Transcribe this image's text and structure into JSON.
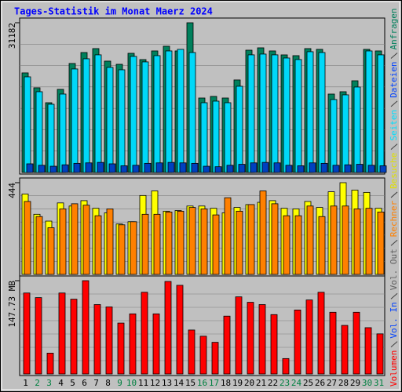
{
  "title": "Tages-Statistik im Monat Maerz 2024",
  "categories": [
    "1",
    "2",
    "3",
    "4",
    "5",
    "6",
    "7",
    "8",
    "9",
    "10",
    "11",
    "12",
    "13",
    "14",
    "15",
    "16",
    "17",
    "18",
    "19",
    "20",
    "21",
    "22",
    "23",
    "24",
    "25",
    "26",
    "27",
    "28",
    "29",
    "30",
    "31"
  ],
  "category_colors": [
    "#000000",
    "#008040",
    "#008040",
    "#000000",
    "#000000",
    "#000000",
    "#000000",
    "#000000",
    "#008040",
    "#008040",
    "#000000",
    "#000000",
    "#000000",
    "#000000",
    "#000000",
    "#008040",
    "#008040",
    "#000000",
    "#000000",
    "#000000",
    "#000000",
    "#000000",
    "#008040",
    "#008040",
    "#000000",
    "#000000",
    "#000000",
    "#000000",
    "#000000",
    "#008040",
    "#008040"
  ],
  "chart_data": [
    {
      "type": "bar",
      "ylim": [
        0,
        31182
      ],
      "yticks": [
        31182
      ],
      "series": [
        {
          "name": "Anfragen",
          "color": "#00805c",
          "text_color": "#00805c",
          "values": [
            20740,
            17640,
            14530,
            17310,
            22700,
            24980,
            25800,
            23190,
            22530,
            24820,
            23510,
            25310,
            26290,
            25310,
            31182,
            15510,
            15840,
            15510,
            19270,
            25470,
            25960,
            25310,
            24490,
            24330,
            25800,
            25640,
            16330,
            16820,
            19100,
            25640,
            25310
          ]
        },
        {
          "name": "Dateien",
          "color": "#00d8f8",
          "text_color": "#0040ff",
          "values": [
            19920,
            16820,
            14210,
            16330,
            21560,
            23680,
            24500,
            21880,
            21390,
            24170,
            23030,
            24330,
            25310,
            25640,
            24980,
            14530,
            14860,
            14530,
            17960,
            24500,
            24660,
            24500,
            23840,
            23520,
            25150,
            24980,
            15190,
            16170,
            17800,
            25310,
            24500
          ]
        },
        {
          "name": "Seiten",
          "color": "#0040c0",
          "text_color": "#00e0ff",
          "values": [
            1800,
            1500,
            1300,
            1600,
            1900,
            2000,
            2100,
            1800,
            1400,
            1500,
            1900,
            2000,
            2100,
            2000,
            1900,
            1300,
            1200,
            1500,
            1700,
            2000,
            2100,
            2000,
            1500,
            1400,
            2000,
            1900,
            1500,
            1600,
            1700,
            1500,
            1400
          ]
        }
      ]
    },
    {
      "type": "bar",
      "ylim": [
        0,
        444
      ],
      "yticks": [
        444
      ],
      "series": [
        {
          "name": "Besuche",
          "color": "#ffff00",
          "text_color": "#e0e000",
          "values": [
            389,
            291,
            258,
            346,
            331,
            357,
            320,
            298,
            244,
            255,
            382,
            404,
            306,
            309,
            331,
            331,
            320,
            298,
            324,
            338,
            349,
            357,
            320,
            317,
            353,
            324,
            400,
            444,
            408,
            397,
            320
          ]
        },
        {
          "name": "Rechner",
          "color": "#ff8000",
          "text_color": "#ff8000",
          "values": [
            353,
            280,
            226,
            317,
            342,
            335,
            284,
            317,
            240,
            255,
            291,
            291,
            302,
            306,
            324,
            317,
            288,
            371,
            306,
            338,
            404,
            342,
            284,
            284,
            331,
            280,
            331,
            331,
            317,
            320,
            302
          ]
        }
      ]
    },
    {
      "type": "bar",
      "ylim": [
        0,
        147.73
      ],
      "yticks": [
        {
          "value": 147.73,
          "label": "147.73 MB"
        }
      ],
      "series": [
        {
          "name": "Vol. Out",
          "color": "#606060",
          "text_color": "#606060"
        },
        {
          "name": "Vol. In",
          "color": "#0040ff",
          "text_color": "#0040ff"
        },
        {
          "name": "Volumen",
          "color": "#ff0000",
          "text_color": "#ff0000",
          "values": [
            128.2,
            120.9,
            33.0,
            128.2,
            118.4,
            147.73,
            109.9,
            106.2,
            80.6,
            95.2,
            129.4,
            95.2,
            146.5,
            140.4,
            69.6,
            59.8,
            50.1,
            91.6,
            122.1,
            113.5,
            109.9,
            94.0,
            24.4,
            101.3,
            117.2,
            129.4,
            97.7,
            76.9,
            97.7,
            73.3,
            63.5
          ]
        }
      ]
    }
  ]
}
